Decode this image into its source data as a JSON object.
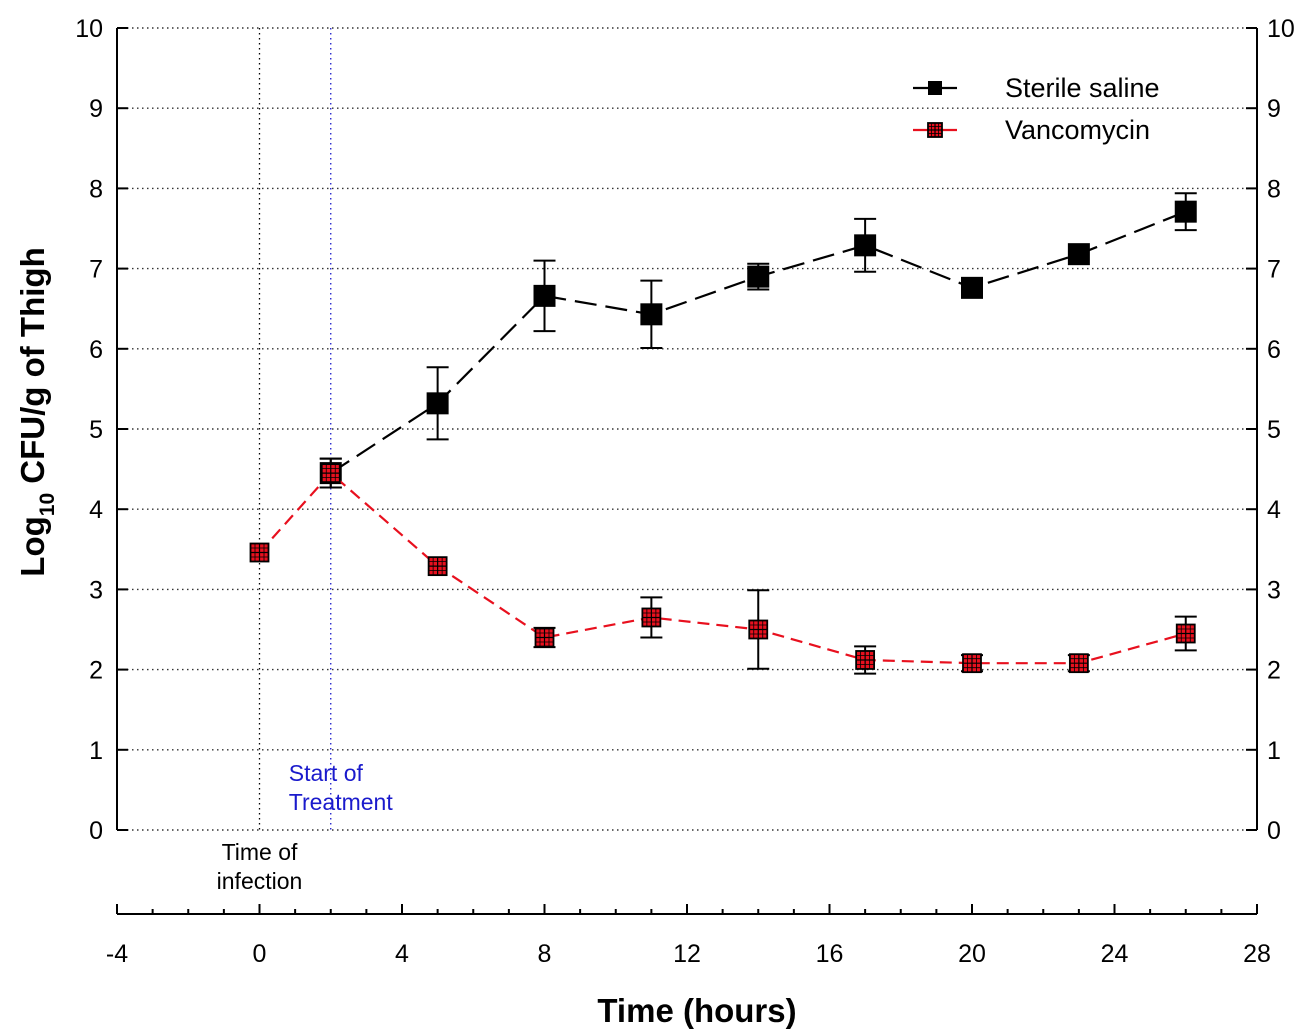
{
  "chart_data": {
    "type": "line",
    "title": "",
    "xlabel": "Time (hours)",
    "ylabel_main": "Log",
    "ylabel_sub": "10",
    "ylabel_rest": " CFU/g of Thigh",
    "xlim": [
      -4,
      28
    ],
    "ylim": [
      0,
      10
    ],
    "x_ticks": [
      -4,
      0,
      4,
      8,
      12,
      16,
      20,
      24,
      28
    ],
    "x_minor_step": 1,
    "y_ticks": [
      0,
      1,
      2,
      3,
      4,
      5,
      6,
      7,
      8,
      9,
      10
    ],
    "grid": "horizontal dotted",
    "legend_position": "top-right",
    "series": [
      {
        "name": "Sterile saline",
        "color": "#000000",
        "marker": "filled-square",
        "dash": "long-dash",
        "x": [
          2,
          5,
          8,
          11,
          14,
          17,
          20,
          23,
          26
        ],
        "y": [
          4.45,
          5.32,
          6.66,
          6.43,
          6.9,
          7.29,
          6.76,
          7.18,
          7.71
        ],
        "err": [
          0.18,
          0.45,
          0.44,
          0.42,
          0.16,
          0.33,
          0.0,
          0.0,
          0.23
        ]
      },
      {
        "name": "Vancomycin",
        "color": "#e8101e",
        "marker": "red-square-with-cross",
        "dash": "short-dash",
        "x": [
          0,
          2,
          5,
          8,
          11,
          14,
          17,
          20,
          23,
          26
        ],
        "y": [
          3.46,
          4.45,
          3.29,
          2.4,
          2.65,
          2.5,
          2.12,
          2.08,
          2.08,
          2.45
        ],
        "err": [
          0.0,
          0.18,
          0.0,
          0.12,
          0.25,
          0.49,
          0.17,
          0.1,
          0.1,
          0.21
        ]
      }
    ],
    "annotations": [
      {
        "id": "infection",
        "x": 0,
        "text_lines": [
          "Time of",
          "infection"
        ],
        "color": "#000000"
      },
      {
        "id": "treatment",
        "x": 2,
        "text_lines": [
          "Start of",
          "Treatment"
        ],
        "color": "#1a1acc"
      }
    ]
  }
}
